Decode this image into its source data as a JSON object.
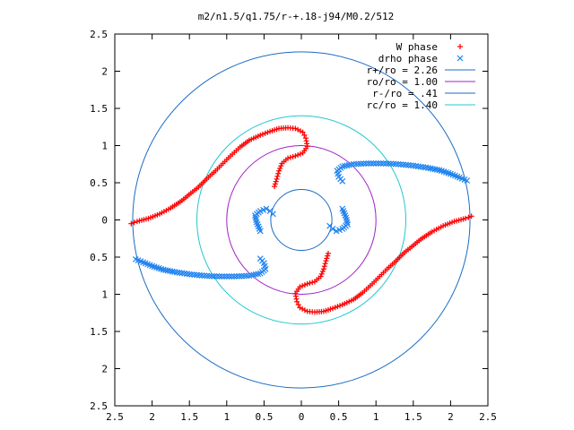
{
  "chart_data": {
    "type": "scatter",
    "title": "m2/n1.5/q1.75/r-+.18-j94/M0.2/512",
    "xlabel": "",
    "ylabel": "",
    "xlim": [
      -2.5,
      2.5
    ],
    "ylim": [
      -2.5,
      2.5
    ],
    "x_tick_values": [
      -2.5,
      -2,
      -1.5,
      -1,
      -0.5,
      0,
      0.5,
      1,
      1.5,
      2,
      2.5
    ],
    "x_tick_labels": [
      "2.5",
      "2",
      "1.5",
      "1",
      "0.5",
      "0",
      "0.5",
      "1",
      "1.5",
      "2",
      "2.5"
    ],
    "y_tick_values": [
      2.5,
      2,
      1.5,
      1,
      0.5,
      0,
      -0.5,
      -1,
      -1.5,
      -2,
      -2.5
    ],
    "y_tick_labels": [
      "2.5",
      "2",
      "1.5",
      "1",
      "0.5",
      "0",
      "0.5",
      "1",
      "1.5",
      "2",
      "2.5"
    ],
    "grid": false,
    "legend_position": "top-right",
    "series": [
      {
        "name": "W phase",
        "marker": "plus",
        "color": "#ff0000",
        "points": [
          [
            -2.28,
            -0.05
          ],
          [
            -2.2,
            -0.02
          ],
          [
            -2.05,
            0.02
          ],
          [
            -1.9,
            0.08
          ],
          [
            -1.75,
            0.16
          ],
          [
            -1.6,
            0.26
          ],
          [
            -1.48,
            0.36
          ],
          [
            -1.38,
            0.44
          ],
          [
            -1.27,
            0.55
          ],
          [
            -1.15,
            0.66
          ],
          [
            -1.05,
            0.76
          ],
          [
            -0.95,
            0.86
          ],
          [
            -0.82,
            0.98
          ],
          [
            -0.7,
            1.07
          ],
          [
            -0.55,
            1.14
          ],
          [
            -0.42,
            1.19
          ],
          [
            -0.3,
            1.23
          ],
          [
            -0.18,
            1.24
          ],
          [
            -0.08,
            1.23
          ],
          [
            0.02,
            1.18
          ],
          [
            0.06,
            1.1
          ],
          [
            0.08,
            0.99
          ],
          [
            0.02,
            0.9
          ],
          [
            -0.08,
            0.86
          ],
          [
            -0.18,
            0.83
          ],
          [
            -0.26,
            0.76
          ],
          [
            -0.3,
            0.66
          ],
          [
            -0.33,
            0.55
          ],
          [
            -0.36,
            0.45
          ],
          [
            2.28,
            0.05
          ],
          [
            2.2,
            0.02
          ],
          [
            2.05,
            -0.02
          ],
          [
            1.9,
            -0.08
          ],
          [
            1.75,
            -0.16
          ],
          [
            1.6,
            -0.26
          ],
          [
            1.48,
            -0.36
          ],
          [
            1.38,
            -0.44
          ],
          [
            1.27,
            -0.55
          ],
          [
            1.15,
            -0.66
          ],
          [
            1.05,
            -0.76
          ],
          [
            0.95,
            -0.86
          ],
          [
            0.82,
            -0.98
          ],
          [
            0.7,
            -1.07
          ],
          [
            0.55,
            -1.14
          ],
          [
            0.42,
            -1.19
          ],
          [
            0.3,
            -1.23
          ],
          [
            0.18,
            -1.24
          ],
          [
            0.08,
            -1.23
          ],
          [
            -0.02,
            -1.18
          ],
          [
            -0.06,
            -1.1
          ],
          [
            -0.08,
            -0.99
          ],
          [
            -0.02,
            -0.9
          ],
          [
            0.08,
            -0.86
          ],
          [
            0.18,
            -0.83
          ],
          [
            0.26,
            -0.76
          ],
          [
            0.3,
            -0.66
          ],
          [
            0.33,
            -0.55
          ],
          [
            0.36,
            -0.45
          ]
        ]
      },
      {
        "name": "drho phase",
        "marker": "cross",
        "color": "#1e82f0",
        "points": [
          [
            0.55,
            0.52
          ],
          [
            0.5,
            0.58
          ],
          [
            0.48,
            0.66
          ],
          [
            0.55,
            0.72
          ],
          [
            0.7,
            0.75
          ],
          [
            0.9,
            0.76
          ],
          [
            1.1,
            0.76
          ],
          [
            1.3,
            0.75
          ],
          [
            1.5,
            0.73
          ],
          [
            1.7,
            0.7
          ],
          [
            1.85,
            0.67
          ],
          [
            2.0,
            0.62
          ],
          [
            2.12,
            0.57
          ],
          [
            2.22,
            0.53
          ],
          [
            0.55,
            0.15
          ],
          [
            0.6,
            0.03
          ],
          [
            0.62,
            -0.06
          ],
          [
            0.55,
            -0.12
          ],
          [
            0.47,
            -0.15
          ],
          [
            0.42,
            -0.12
          ],
          [
            0.38,
            -0.08
          ],
          [
            -0.55,
            -0.52
          ],
          [
            -0.5,
            -0.58
          ],
          [
            -0.48,
            -0.66
          ],
          [
            -0.55,
            -0.72
          ],
          [
            -0.7,
            -0.75
          ],
          [
            -0.9,
            -0.76
          ],
          [
            -1.1,
            -0.76
          ],
          [
            -1.3,
            -0.75
          ],
          [
            -1.5,
            -0.73
          ],
          [
            -1.7,
            -0.7
          ],
          [
            -1.85,
            -0.67
          ],
          [
            -2.0,
            -0.62
          ],
          [
            -2.12,
            -0.57
          ],
          [
            -2.22,
            -0.53
          ],
          [
            -0.55,
            -0.15
          ],
          [
            -0.6,
            -0.03
          ],
          [
            -0.62,
            0.06
          ],
          [
            -0.55,
            0.12
          ],
          [
            -0.47,
            0.15
          ],
          [
            -0.42,
            0.12
          ],
          [
            -0.38,
            0.08
          ]
        ]
      }
    ],
    "circles": [
      {
        "name": "r+/ro = 2.26",
        "radius": 2.26,
        "color": "#1a6cc4"
      },
      {
        "name": "ro/ro = 1.00",
        "radius": 1.0,
        "color": "#a020c8"
      },
      {
        "name": "r-/ro = .41",
        "radius": 0.41,
        "color": "#1a6cc4"
      },
      {
        "name": "rc/ro = 1.40",
        "radius": 1.4,
        "color": "#20c8d0"
      }
    ]
  }
}
